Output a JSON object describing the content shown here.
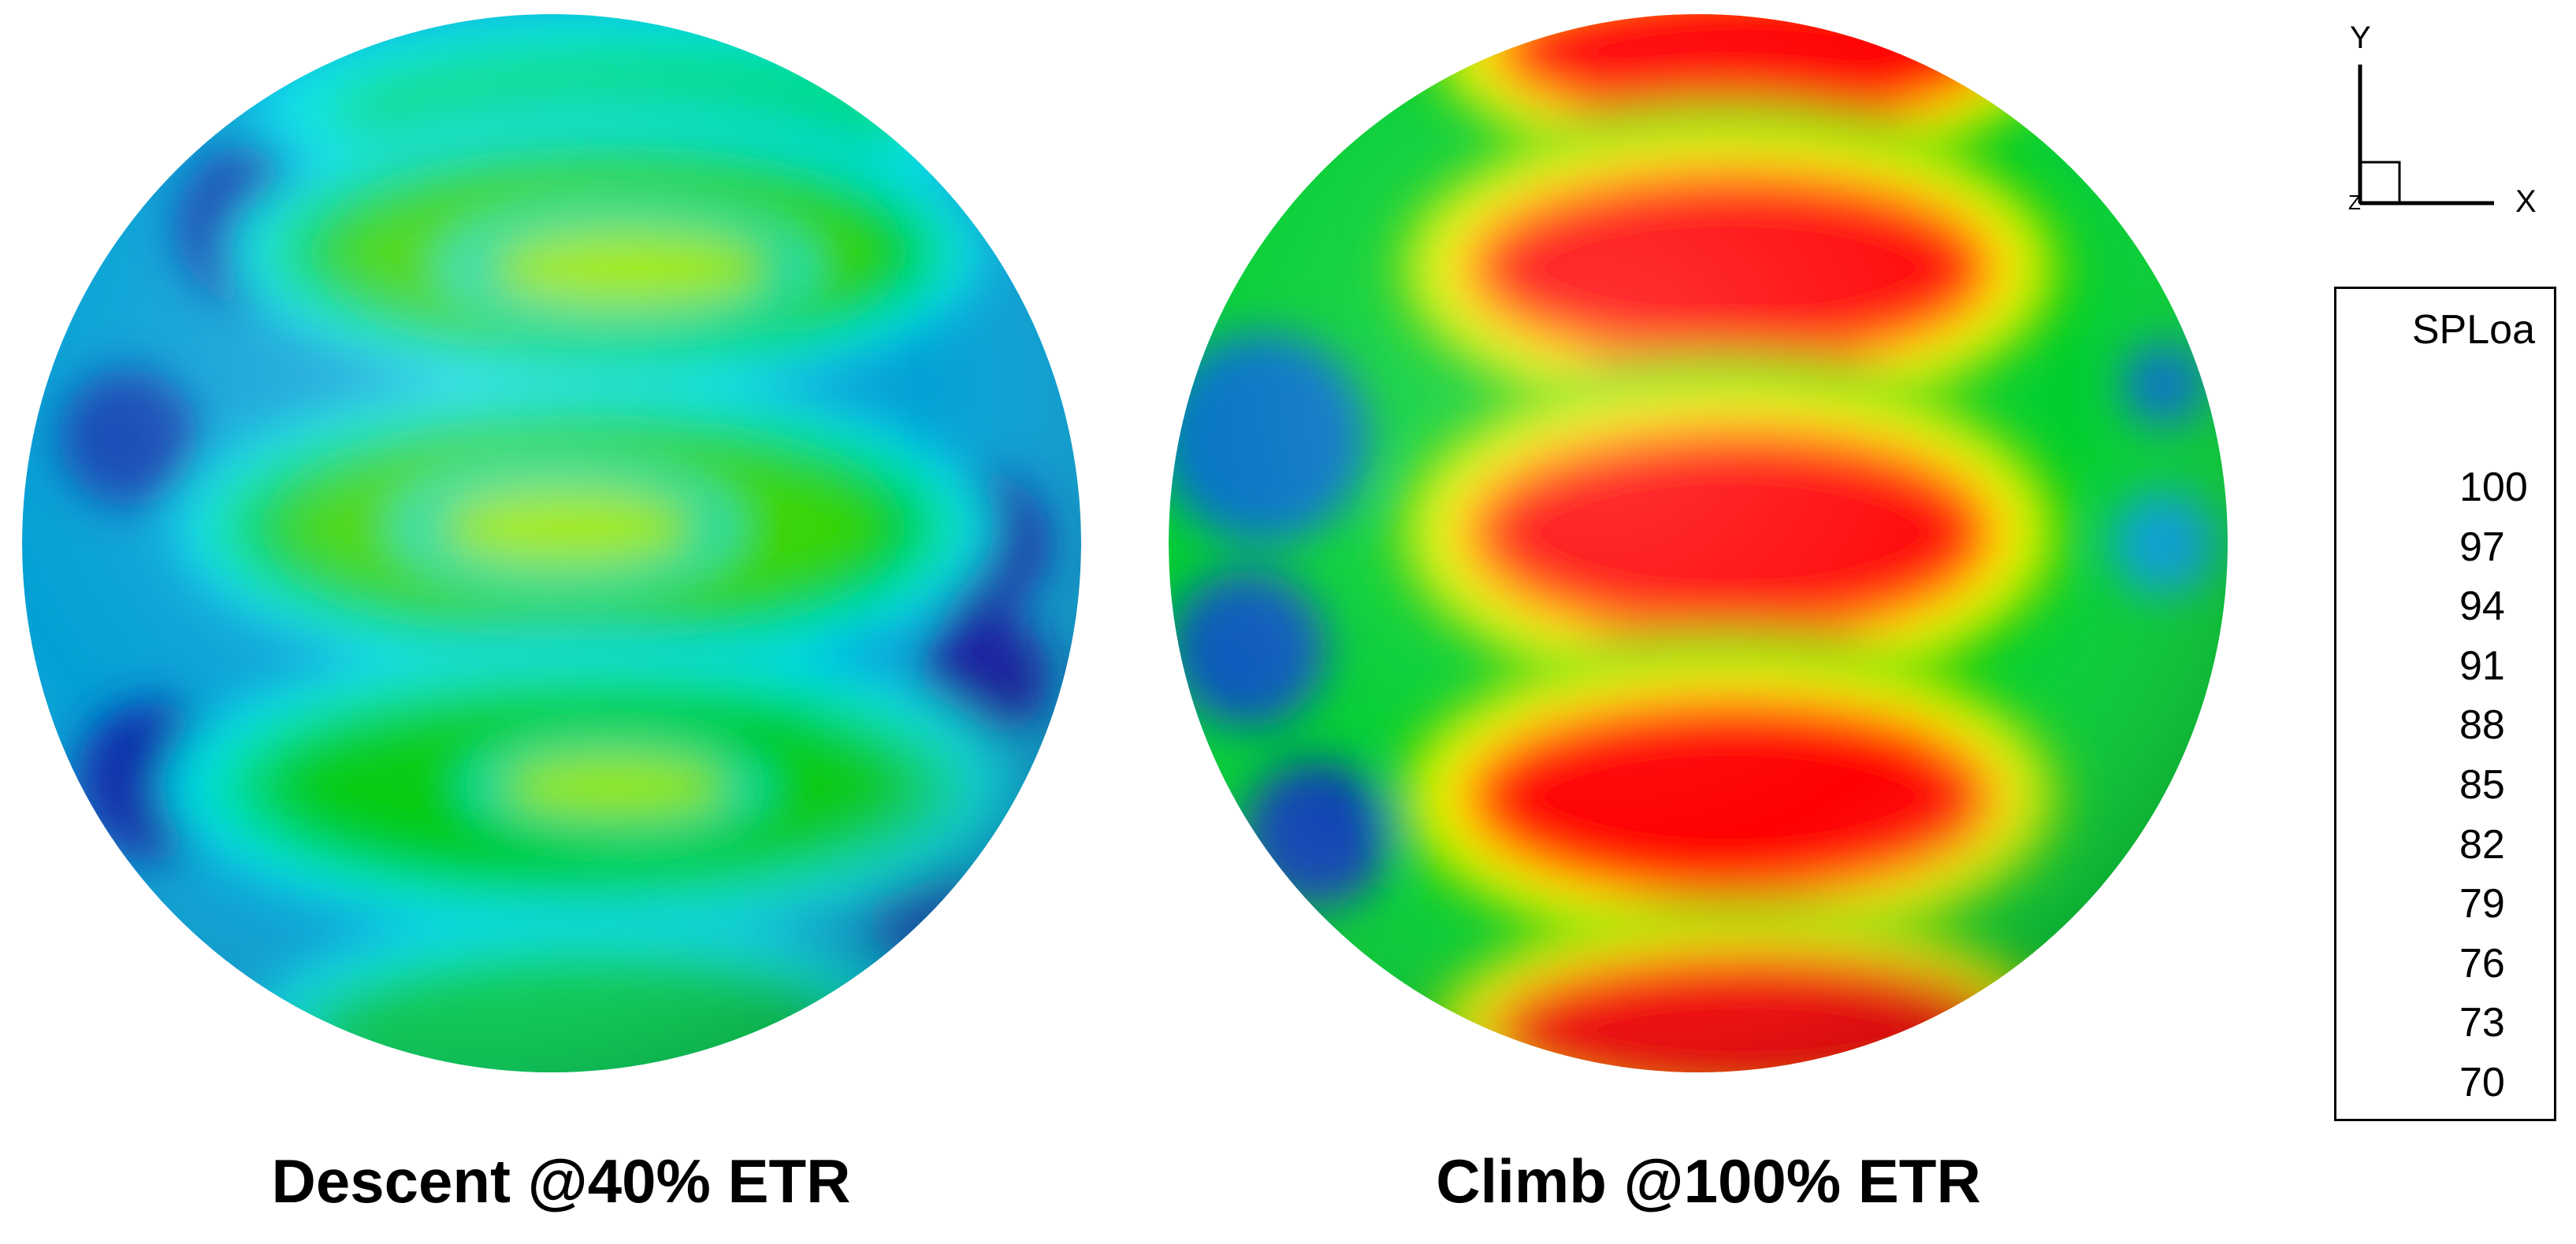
{
  "plots": [
    {
      "caption": "Descent @40% ETR",
      "bands": [
        {
          "level": 82,
          "dy": -0.82,
          "rx": 0.48,
          "ry": 0.09,
          "cx": 0.25
        },
        {
          "level": 88,
          "dy": -0.55,
          "rx": 0.46,
          "ry": 0.11,
          "cx": 0.18
        },
        {
          "level": 91,
          "dy": -0.52,
          "rx": 0.22,
          "ry": 0.05,
          "cx": 0.25
        },
        {
          "level": 88,
          "dy": -0.03,
          "rx": 0.5,
          "ry": 0.12,
          "cx": 0.1
        },
        {
          "level": 91,
          "dy": -0.03,
          "rx": 0.2,
          "ry": 0.05,
          "cx": 0.05
        },
        {
          "level": 86,
          "dy": 0.46,
          "rx": 0.52,
          "ry": 0.12,
          "cx": 0.12
        },
        {
          "level": 91,
          "dy": 0.46,
          "rx": 0.18,
          "ry": 0.04,
          "cx": 0.2
        },
        {
          "level": 84,
          "dy": 0.93,
          "rx": 0.42,
          "ry": 0.1,
          "cx": 0.1
        }
      ],
      "base_level": 76,
      "low_spots": [
        {
          "level": 72,
          "dx": -0.55,
          "dy": -0.6,
          "r": 0.16
        },
        {
          "level": 72,
          "dx": -0.8,
          "dy": -0.2,
          "r": 0.13
        },
        {
          "level": 71,
          "dx": -0.75,
          "dy": 0.45,
          "r": 0.15
        },
        {
          "level": 71,
          "dx": 0.8,
          "dy": 0.0,
          "r": 0.14
        },
        {
          "level": 70,
          "dx": 0.82,
          "dy": 0.25,
          "r": 0.12
        },
        {
          "level": 73,
          "dx": 0.7,
          "dy": 0.7,
          "r": 0.1
        }
      ]
    },
    {
      "caption": "Climb @100% ETR",
      "bands": [
        {
          "level": 100,
          "dy": -0.93,
          "rx": 0.4,
          "ry": 0.1,
          "cx": 0.15
        },
        {
          "level": 100,
          "dy": -0.52,
          "rx": 0.42,
          "ry": 0.13,
          "cx": 0.1
        },
        {
          "level": 100,
          "dy": -0.02,
          "rx": 0.42,
          "ry": 0.14,
          "cx": 0.1
        },
        {
          "level": 100,
          "dy": 0.48,
          "rx": 0.42,
          "ry": 0.13,
          "cx": 0.1
        },
        {
          "level": 100,
          "dy": 0.92,
          "rx": 0.4,
          "ry": 0.1,
          "cx": 0.15
        }
      ],
      "base_level": 85,
      "low_spots": [
        {
          "level": 74,
          "dx": -0.82,
          "dy": -0.2,
          "r": 0.2
        },
        {
          "level": 73,
          "dx": -0.85,
          "dy": 0.2,
          "r": 0.15
        },
        {
          "level": 72,
          "dx": -0.72,
          "dy": 0.55,
          "r": 0.14
        },
        {
          "level": 76,
          "dx": 0.88,
          "dy": 0.0,
          "r": 0.1
        },
        {
          "level": 74,
          "dx": 0.88,
          "dy": -0.3,
          "r": 0.08
        }
      ]
    }
  ],
  "legend": {
    "title": "SPLoa",
    "ticks": [
      "100",
      "97",
      "94",
      "91",
      "88",
      "85",
      "82",
      "79",
      "76",
      "73",
      "70"
    ],
    "min": 70,
    "max": 100,
    "levels": 31
  },
  "axes_triad": {
    "y_label": "Y",
    "x_label": "X",
    "z_label": "Z"
  },
  "colors": {
    "low": "#0a14a0",
    "mid": "#00e6f0",
    "green": "#00c800",
    "yellow": "#ffff00",
    "high": "#ff0000"
  }
}
